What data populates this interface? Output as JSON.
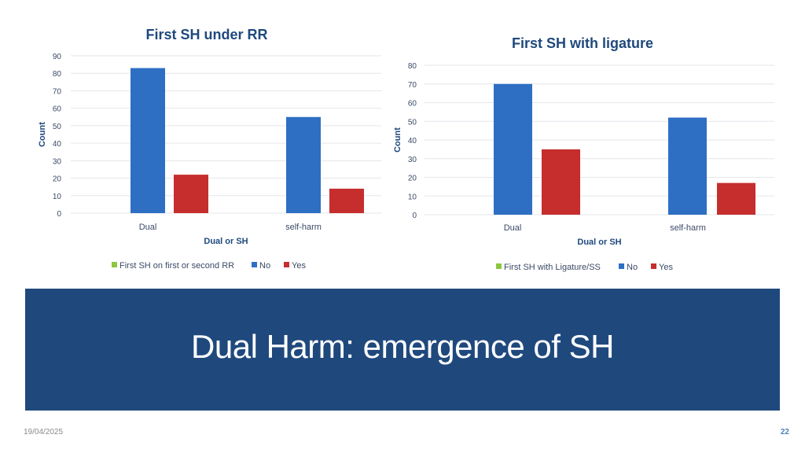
{
  "chart_data": [
    {
      "type": "bar",
      "title": "First SH under RR",
      "xlabel": "Dual or SH",
      "ylabel": "Count",
      "categories": [
        "Dual",
        "self-harm"
      ],
      "ylim": [
        0,
        90
      ],
      "yticks": [
        0,
        10,
        20,
        30,
        40,
        50,
        60,
        70,
        80,
        90
      ],
      "legend_position": "bottom",
      "legend": [
        "First SH on first or second RR",
        "No",
        "Yes"
      ],
      "series": [
        {
          "name": "No",
          "values": [
            83,
            55
          ]
        },
        {
          "name": "Yes",
          "values": [
            22,
            14
          ]
        }
      ]
    },
    {
      "type": "bar",
      "title": "First SH with ligature",
      "xlabel": "Dual or SH",
      "ylabel": "Count",
      "categories": [
        "Dual",
        "self-harm"
      ],
      "ylim": [
        0,
        80
      ],
      "yticks": [
        0,
        10,
        20,
        30,
        40,
        50,
        60,
        70,
        80
      ],
      "legend_position": "bottom",
      "legend": [
        "First SH with Ligature/SS",
        "No",
        "Yes"
      ],
      "series": [
        {
          "name": "No",
          "values": [
            70,
            52
          ]
        },
        {
          "name": "Yes",
          "values": [
            35,
            17
          ]
        }
      ]
    }
  ],
  "colors": {
    "legend_title": "#8dc63f",
    "No": "#2e6fc4",
    "Yes": "#c62d2d",
    "banner": "#1f497d"
  },
  "banner": {
    "title": "Dual Harm: emergence of SH"
  },
  "footer": {
    "date": "19/04/2025",
    "page": "22"
  }
}
